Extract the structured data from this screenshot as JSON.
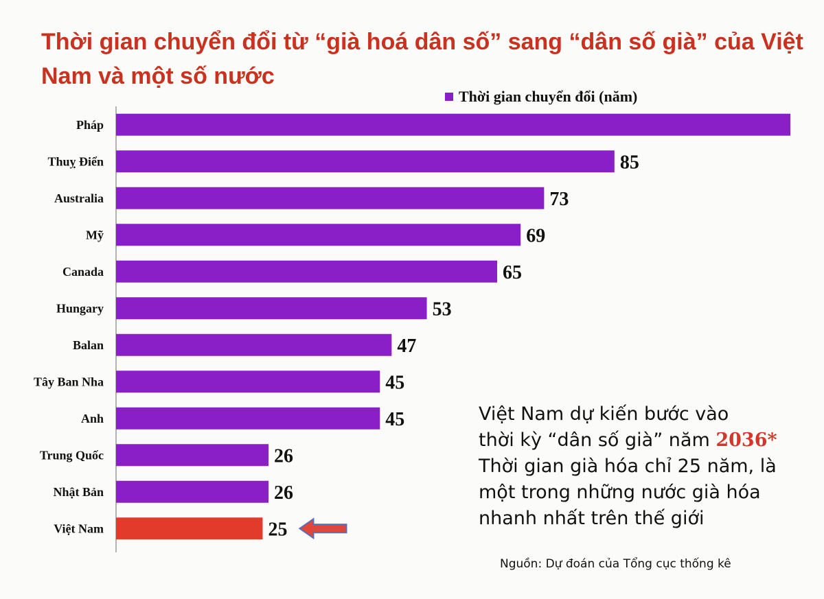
{
  "title": "Thời gian chuyển đổi từ “già hoá dân số” sang “dân số già” của Việt Nam và một số nước",
  "legend": {
    "label": "Thời gian chuyển đổi (năm)"
  },
  "colors": {
    "bar": "#8a1fc8",
    "highlight_bar": "#e23a2b",
    "arrow": "#e0463a",
    "axis": "#999999",
    "title": "#c8321e"
  },
  "chart_data": {
    "type": "bar",
    "orientation": "horizontal",
    "categories": [
      "Pháp",
      "Thuỵ Điển",
      "Australia",
      "Mỹ",
      "Canada",
      "Hungary",
      "Balan",
      "Tây Ban Nha",
      "Anh",
      "Trung Quốc",
      "Nhật Bản",
      "Việt Nam"
    ],
    "series": [
      {
        "name": "Thời gian chuyển đổi (năm)",
        "values": [
          115,
          85,
          73,
          69,
          65,
          53,
          47,
          45,
          45,
          26,
          26,
          25
        ],
        "data_labels": [
          "",
          "85",
          "73",
          "69",
          "65",
          "53",
          "47",
          "45",
          "45",
          "26",
          "26",
          "25"
        ]
      }
    ],
    "highlight_category": "Việt Nam",
    "xlim": [
      0,
      115
    ],
    "grid": false,
    "legend_position": "top-right"
  },
  "note": {
    "line1": "Việt Nam dự kiến bước vào",
    "line2_pre": "thời kỳ “dân số già” năm ",
    "line2_highlight": "2036*",
    "line3": "Thời gian già hóa chỉ 25 năm, là",
    "line4": "một trong những nước già hóa",
    "line5": "nhanh nhất trên thế giới"
  },
  "source": "Nguồn: Dự đoán của Tổng cục thống kê"
}
